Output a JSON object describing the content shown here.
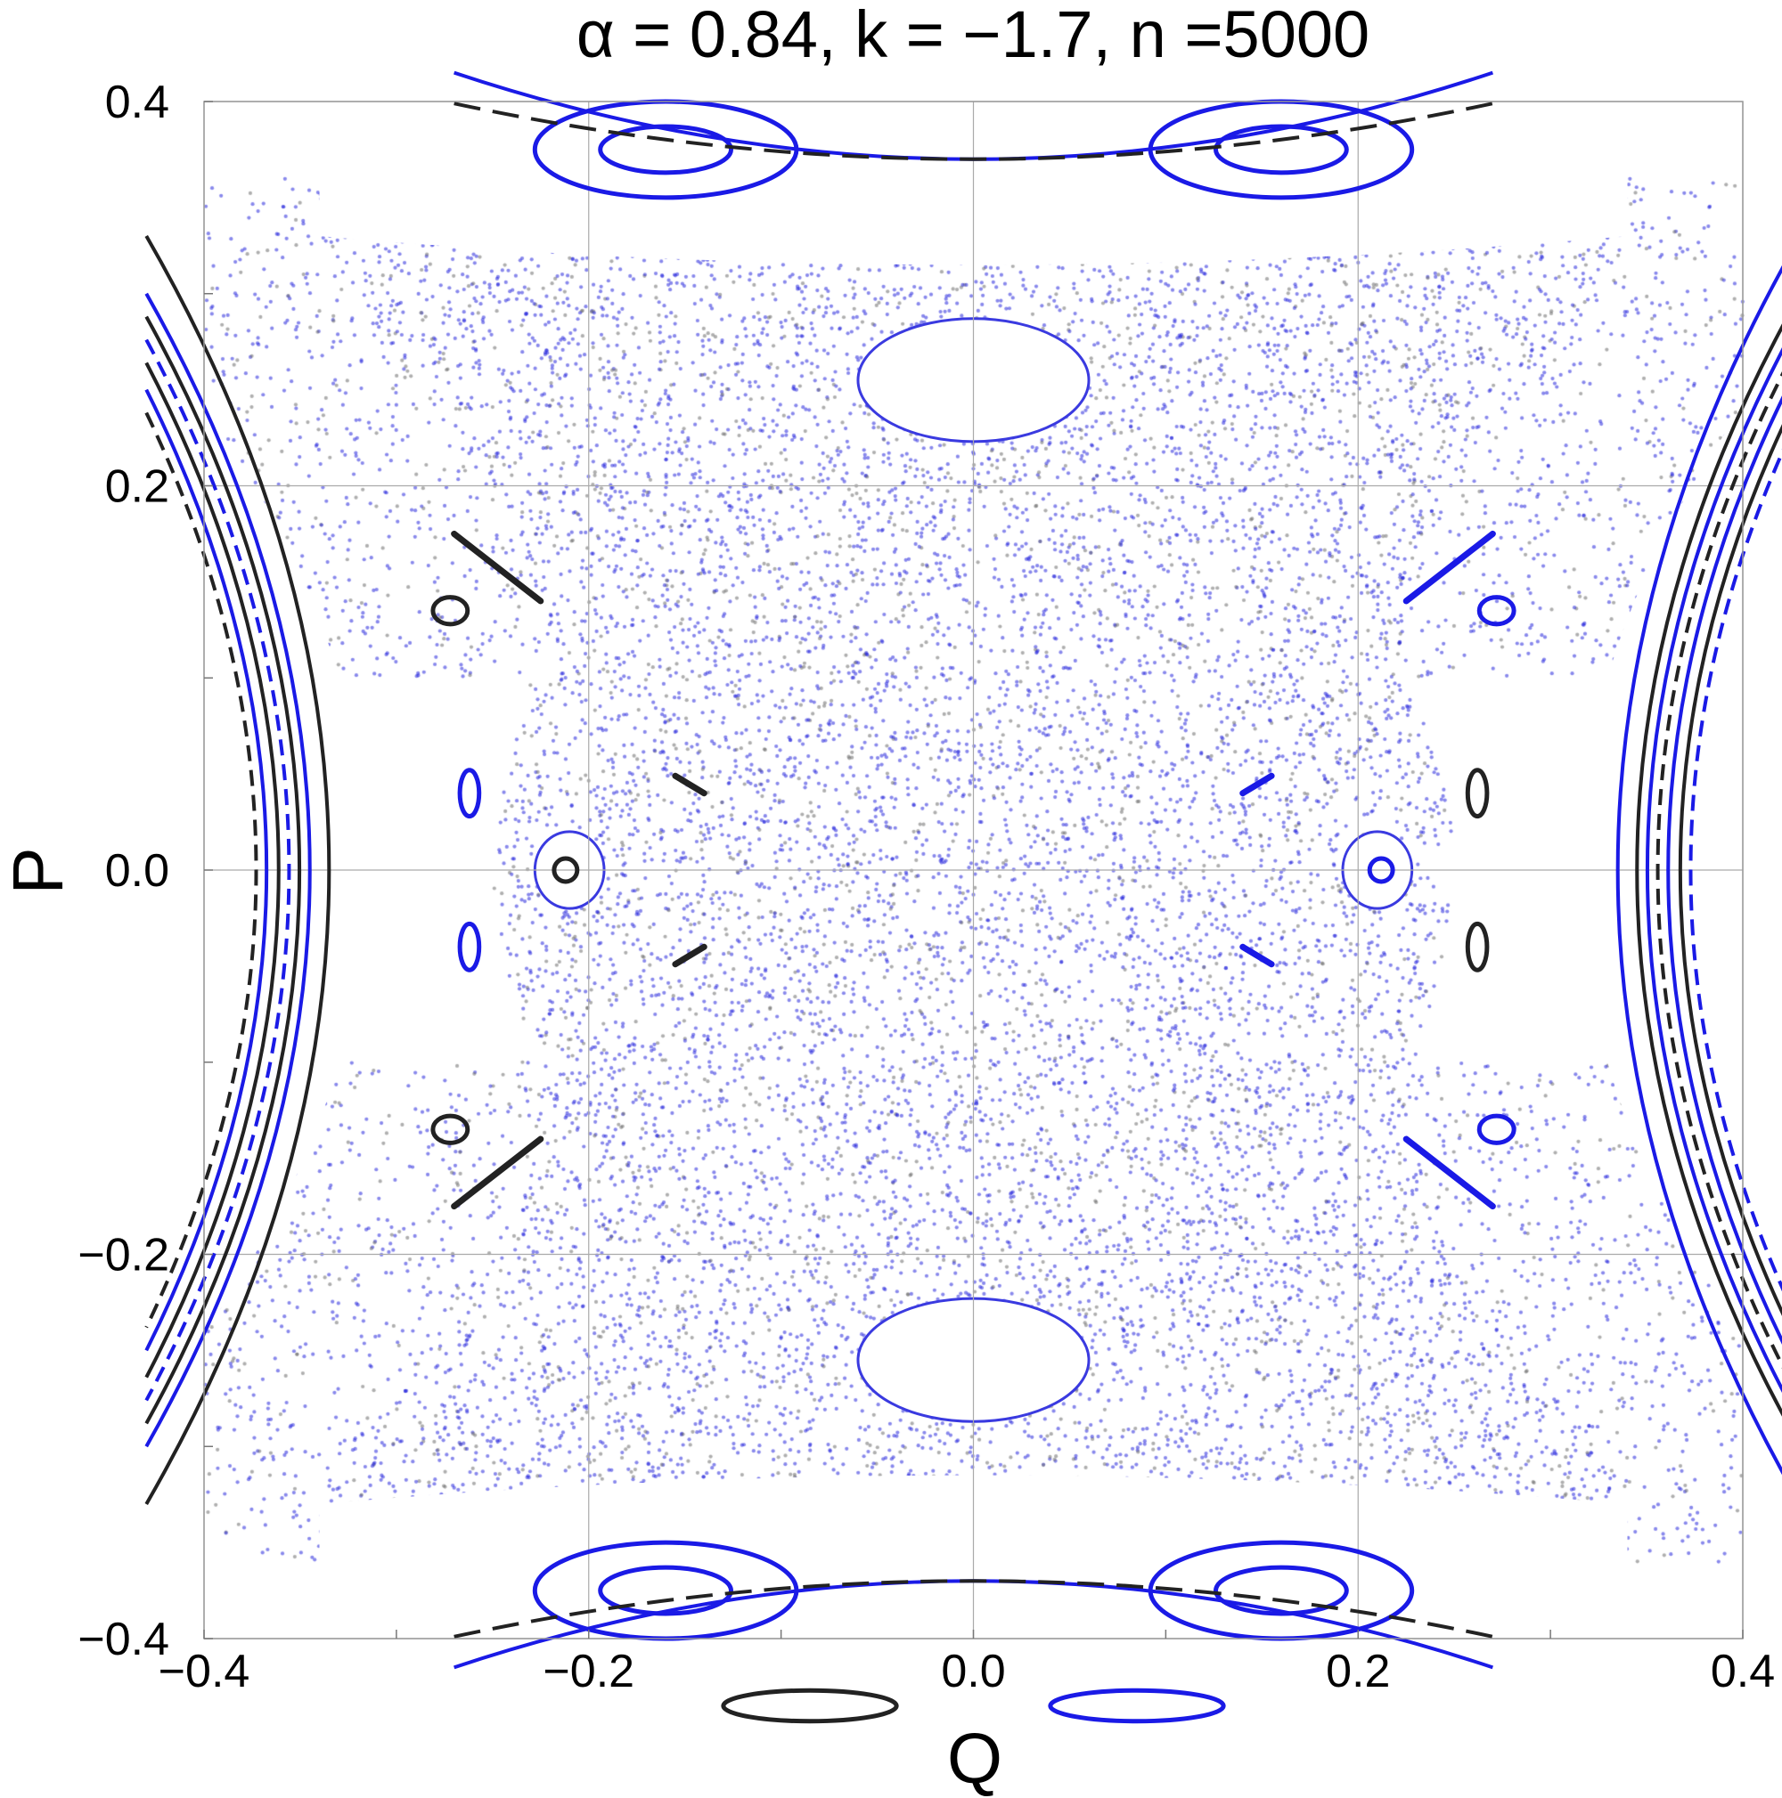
{
  "chart_data": {
    "type": "scatter",
    "title": "α = 0.84, k = −1.7, n =5000",
    "xlabel": "Q",
    "ylabel": "P",
    "xlim": [
      -0.4,
      0.4
    ],
    "ylim": [
      -0.4,
      0.4
    ],
    "xticks": [
      -0.4,
      -0.2,
      0.0,
      0.2,
      0.4
    ],
    "yticks": [
      -0.4,
      -0.2,
      0.0,
      0.2,
      0.4
    ],
    "xtick_labels": [
      "−0.4",
      "−0.2",
      "0.0",
      "0.2",
      "0.4"
    ],
    "ytick_labels": [
      "−0.4",
      "−0.2",
      "0.0",
      "0.2",
      "0.4"
    ],
    "grid": true,
    "colors": {
      "blue": "#1a1ae6",
      "black": "#222222",
      "gray": "#888888"
    },
    "islands": [
      {
        "color": "blue",
        "cx": -0.16,
        "cy": 0.375,
        "rx": 0.034,
        "ry": 0.012
      },
      {
        "color": "blue",
        "cx": -0.16,
        "cy": 0.375,
        "rx": 0.068,
        "ry": 0.025
      },
      {
        "color": "blue",
        "cx": 0.16,
        "cy": 0.375,
        "rx": 0.034,
        "ry": 0.012
      },
      {
        "color": "blue",
        "cx": 0.16,
        "cy": 0.375,
        "rx": 0.068,
        "ry": 0.025
      },
      {
        "color": "blue",
        "cx": -0.16,
        "cy": -0.375,
        "rx": 0.034,
        "ry": 0.012
      },
      {
        "color": "blue",
        "cx": -0.16,
        "cy": -0.375,
        "rx": 0.068,
        "ry": 0.025
      },
      {
        "color": "blue",
        "cx": 0.16,
        "cy": -0.375,
        "rx": 0.034,
        "ry": 0.012
      },
      {
        "color": "blue",
        "cx": 0.16,
        "cy": -0.375,
        "rx": 0.068,
        "ry": 0.025
      },
      {
        "color": "black",
        "cx": -0.212,
        "cy": 0.0,
        "rx": 0.006,
        "ry": 0.006
      },
      {
        "color": "blue",
        "cx": 0.212,
        "cy": 0.0,
        "rx": 0.006,
        "ry": 0.006
      },
      {
        "color": "black",
        "cx": -0.272,
        "cy": 0.135,
        "rx": 0.009,
        "ry": 0.007
      },
      {
        "color": "black",
        "cx": -0.272,
        "cy": -0.135,
        "rx": 0.009,
        "ry": 0.007
      },
      {
        "color": "blue",
        "cx": 0.272,
        "cy": 0.135,
        "rx": 0.009,
        "ry": 0.007
      },
      {
        "color": "blue",
        "cx": 0.272,
        "cy": -0.135,
        "rx": 0.009,
        "ry": 0.007
      },
      {
        "color": "blue",
        "cx": -0.262,
        "cy": 0.04,
        "rx": 0.005,
        "ry": 0.012
      },
      {
        "color": "blue",
        "cx": -0.262,
        "cy": -0.04,
        "rx": 0.005,
        "ry": 0.012
      },
      {
        "color": "black",
        "cx": 0.262,
        "cy": 0.04,
        "rx": 0.005,
        "ry": 0.012
      },
      {
        "color": "black",
        "cx": 0.262,
        "cy": -0.04,
        "rx": 0.005,
        "ry": 0.012
      },
      {
        "color": "black",
        "cx": -0.085,
        "cy": -0.435,
        "rx": 0.045,
        "ry": 0.008
      },
      {
        "color": "blue",
        "cx": 0.085,
        "cy": -0.435,
        "rx": 0.045,
        "ry": 0.008
      }
    ],
    "chaos_holes": [
      {
        "cx": 0.0,
        "cy": 0.255,
        "rx": 0.06,
        "ry": 0.032
      },
      {
        "cx": 0.0,
        "cy": -0.255,
        "rx": 0.06,
        "ry": 0.032
      },
      {
        "cx": -0.21,
        "cy": 0.0,
        "rx": 0.018,
        "ry": 0.02
      },
      {
        "cx": 0.21,
        "cy": 0.0,
        "rx": 0.018,
        "ry": 0.02
      }
    ],
    "dashes": [
      {
        "color": "black",
        "q1": -0.155,
        "p1": 0.049,
        "q2": -0.14,
        "p2": 0.04
      },
      {
        "color": "black",
        "q1": -0.155,
        "p1": -0.049,
        "q2": -0.14,
        "p2": -0.04
      },
      {
        "color": "blue",
        "q1": 0.14,
        "p1": 0.04,
        "q2": 0.155,
        "p2": 0.049
      },
      {
        "color": "blue",
        "q1": 0.14,
        "p1": -0.04,
        "q2": 0.155,
        "p2": -0.049
      },
      {
        "color": "black",
        "q1": -0.27,
        "p1": 0.175,
        "q2": -0.225,
        "p2": 0.14
      },
      {
        "color": "black",
        "q1": -0.27,
        "p1": -0.175,
        "q2": -0.225,
        "p2": -0.14
      },
      {
        "color": "blue",
        "q1": 0.225,
        "p1": 0.14,
        "q2": 0.27,
        "p2": 0.175
      },
      {
        "color": "blue",
        "q1": 0.225,
        "p1": -0.14,
        "q2": 0.27,
        "p2": -0.175
      }
    ]
  }
}
